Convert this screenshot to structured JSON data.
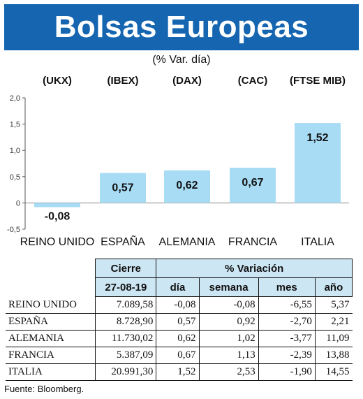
{
  "header": {
    "title": "Bolsas Europeas",
    "subtitle": "(% Var. día)"
  },
  "chart_data": {
    "type": "bar",
    "index_labels": [
      "(UKX)",
      "(IBEX)",
      "(DAX)",
      "(CAC)",
      "(FTSE MIB)"
    ],
    "categories": [
      "REINO UNIDO",
      "ESPAÑA",
      "ALEMANIA",
      "FRANCIA",
      "ITALIA"
    ],
    "values": [
      -0.08,
      0.57,
      0.62,
      0.67,
      1.52
    ],
    "value_labels": [
      "-0,08",
      "0,57",
      "0,62",
      "0,67",
      "1,52"
    ],
    "yticks": [
      2.0,
      1.5,
      1.0,
      0.5,
      0,
      -0.5
    ],
    "ytick_labels": [
      "2,0",
      "1,5",
      "1,0",
      "0,5",
      "0",
      "-0,5"
    ],
    "ylim": [
      -0.5,
      2.0
    ],
    "bar_color": "#a8dcf5",
    "grid": false
  },
  "table": {
    "group_headers": {
      "cierre": "Cierre",
      "variacion": "% Variación"
    },
    "sub_headers": {
      "date": "27-08-19",
      "dia": "día",
      "semana": "semana",
      "mes": "mes",
      "ano": "año"
    },
    "header_bg": "#cde6f4",
    "rows": [
      {
        "name": "REINO UNIDO",
        "cierre": "7.089,58",
        "dia": "-0,08",
        "semana": "-0,08",
        "mes": "-6,55",
        "ano": "5,37"
      },
      {
        "name": "ESPAÑA",
        "cierre": "8.728,90",
        "dia": "0,57",
        "semana": "0,92",
        "mes": "-2,70",
        "ano": "2,21"
      },
      {
        "name": "ALEMANIA",
        "cierre": "11.730,02",
        "dia": "0,62",
        "semana": "1,02",
        "mes": "-3,77",
        "ano": "11,09"
      },
      {
        "name": "FRANCIA",
        "cierre": "5.387,09",
        "dia": "0,67",
        "semana": "1,13",
        "mes": "-2,39",
        "ano": "13,88"
      },
      {
        "name": "ITALIA",
        "cierre": "20.991,30",
        "dia": "1,52",
        "semana": "2,53",
        "mes": "-1,90",
        "ano": "14,55"
      }
    ]
  },
  "source": "Fuente: Bloomberg.",
  "banner_color": "#1565b0"
}
